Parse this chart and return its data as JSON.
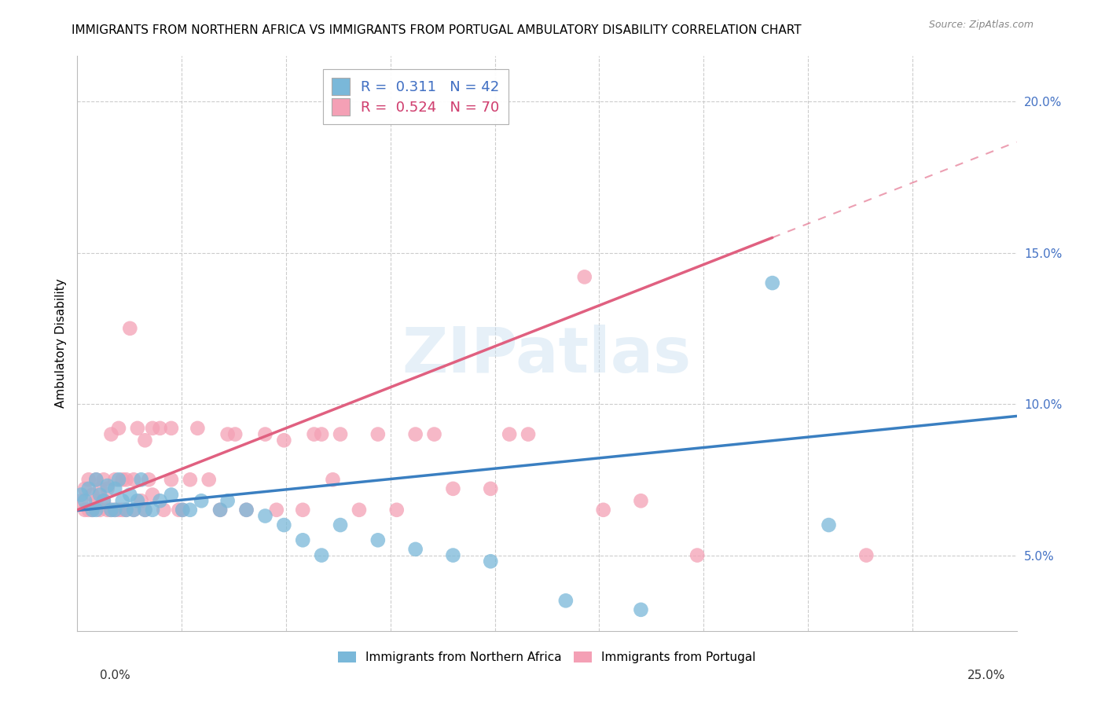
{
  "title": "IMMIGRANTS FROM NORTHERN AFRICA VS IMMIGRANTS FROM PORTUGAL AMBULATORY DISABILITY CORRELATION CHART",
  "source": "Source: ZipAtlas.com",
  "ylabel": "Ambulatory Disability",
  "xmin": 0.0,
  "xmax": 0.25,
  "ymin": 0.025,
  "ymax": 0.215,
  "legend_entry1": "R =  0.311   N = 42",
  "legend_entry2": "R =  0.524   N = 70",
  "legend_label1": "Immigrants from Northern Africa",
  "legend_label2": "Immigrants from Portugal",
  "color_blue": "#7ab8d9",
  "color_pink": "#f4a0b5",
  "color_blue_line": "#3a7fc1",
  "color_pink_line": "#e06080",
  "color_blue_line_light": "#7ab8d9",
  "watermark": "ZIPatlas",
  "blue_x": [
    0.001,
    0.002,
    0.003,
    0.004,
    0.005,
    0.005,
    0.006,
    0.007,
    0.008,
    0.009,
    0.01,
    0.01,
    0.011,
    0.012,
    0.013,
    0.014,
    0.015,
    0.016,
    0.017,
    0.018,
    0.02,
    0.022,
    0.025,
    0.028,
    0.03,
    0.033,
    0.038,
    0.04,
    0.045,
    0.05,
    0.055,
    0.06,
    0.065,
    0.07,
    0.08,
    0.09,
    0.1,
    0.11,
    0.13,
    0.15,
    0.185,
    0.2
  ],
  "blue_y": [
    0.07,
    0.068,
    0.072,
    0.065,
    0.075,
    0.065,
    0.07,
    0.068,
    0.073,
    0.065,
    0.072,
    0.065,
    0.075,
    0.068,
    0.065,
    0.07,
    0.065,
    0.068,
    0.075,
    0.065,
    0.065,
    0.068,
    0.07,
    0.065,
    0.065,
    0.068,
    0.065,
    0.068,
    0.065,
    0.063,
    0.06,
    0.055,
    0.05,
    0.06,
    0.055,
    0.052,
    0.05,
    0.048,
    0.035,
    0.032,
    0.14,
    0.06
  ],
  "pink_x": [
    0.001,
    0.002,
    0.002,
    0.003,
    0.003,
    0.004,
    0.004,
    0.005,
    0.005,
    0.006,
    0.006,
    0.007,
    0.007,
    0.008,
    0.008,
    0.009,
    0.009,
    0.01,
    0.01,
    0.011,
    0.011,
    0.012,
    0.012,
    0.013,
    0.013,
    0.014,
    0.015,
    0.015,
    0.016,
    0.017,
    0.018,
    0.018,
    0.019,
    0.02,
    0.02,
    0.022,
    0.023,
    0.025,
    0.025,
    0.027,
    0.028,
    0.03,
    0.032,
    0.035,
    0.038,
    0.04,
    0.042,
    0.045,
    0.05,
    0.053,
    0.055,
    0.06,
    0.063,
    0.065,
    0.068,
    0.07,
    0.075,
    0.08,
    0.085,
    0.09,
    0.095,
    0.1,
    0.11,
    0.115,
    0.12,
    0.135,
    0.14,
    0.15,
    0.165,
    0.21
  ],
  "pink_y": [
    0.068,
    0.072,
    0.065,
    0.075,
    0.065,
    0.07,
    0.065,
    0.075,
    0.068,
    0.072,
    0.065,
    0.075,
    0.068,
    0.072,
    0.065,
    0.09,
    0.065,
    0.075,
    0.065,
    0.092,
    0.065,
    0.075,
    0.065,
    0.075,
    0.065,
    0.125,
    0.075,
    0.065,
    0.092,
    0.068,
    0.065,
    0.088,
    0.075,
    0.07,
    0.092,
    0.092,
    0.065,
    0.092,
    0.075,
    0.065,
    0.065,
    0.075,
    0.092,
    0.075,
    0.065,
    0.09,
    0.09,
    0.065,
    0.09,
    0.065,
    0.088,
    0.065,
    0.09,
    0.09,
    0.075,
    0.09,
    0.065,
    0.09,
    0.065,
    0.09,
    0.09,
    0.072,
    0.072,
    0.09,
    0.09,
    0.142,
    0.065,
    0.068,
    0.05,
    0.05
  ],
  "grid_color": "#cccccc",
  "bg_color": "#ffffff",
  "ytick_vals": [
    0.05,
    0.1,
    0.15,
    0.2
  ]
}
